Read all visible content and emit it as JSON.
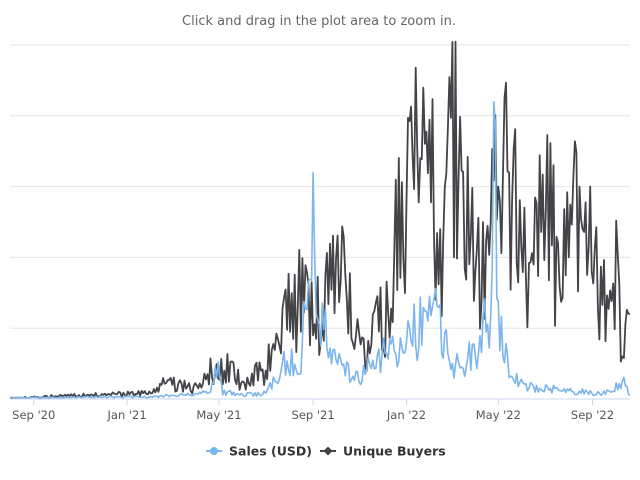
{
  "header": {
    "zoom_hint": "Click and drag in the plot area to zoom in."
  },
  "legend": {
    "sales_label": "Sales (USD)",
    "buyers_label": "Unique Buyers"
  },
  "colors": {
    "sales": "#7cb5ec",
    "buyers": "#434348",
    "grid": "#e6e6e6",
    "axis": "#ccd6eb"
  },
  "chart_data": {
    "type": "line",
    "title": "",
    "xlabel": "",
    "ylabel": "",
    "x_tick_labels": [
      "Sep '20",
      "Jan '21",
      "May '21",
      "Sep '21",
      "Jan '22",
      "May '22",
      "Sep '22"
    ],
    "x_range": [
      "2020-08-01",
      "2022-10-20"
    ],
    "y_range_relative": [
      0,
      5
    ],
    "grid": true,
    "y_axis_labels_shown": false,
    "legend_position": "bottom-center",
    "series": [
      {
        "name": "Sales (USD)",
        "color": "#7cb5ec",
        "points": [
          [
            "2020-08-01",
            0.02
          ],
          [
            "2020-10-01",
            0.02
          ],
          [
            "2020-12-01",
            0.03
          ],
          [
            "2021-02-01",
            0.03
          ],
          [
            "2021-03-01",
            0.05
          ],
          [
            "2021-04-01",
            0.06
          ],
          [
            "2021-04-20",
            0.1
          ],
          [
            "2021-05-01",
            0.7
          ],
          [
            "2021-05-05",
            0.1
          ],
          [
            "2021-06-01",
            0.06
          ],
          [
            "2021-07-01",
            0.08
          ],
          [
            "2021-08-01",
            0.6
          ],
          [
            "2021-08-15",
            0.4
          ],
          [
            "2021-08-25",
            1.8
          ],
          [
            "2021-09-01",
            3.2
          ],
          [
            "2021-09-05",
            1.2
          ],
          [
            "2021-10-01",
            0.55
          ],
          [
            "2021-11-01",
            0.3
          ],
          [
            "2021-12-01",
            0.6
          ],
          [
            "2022-01-01",
            0.8
          ],
          [
            "2022-02-01",
            1.2
          ],
          [
            "2022-02-15",
            1.0
          ],
          [
            "2022-03-01",
            0.5
          ],
          [
            "2022-04-01",
            0.6
          ],
          [
            "2022-04-20",
            1.3
          ],
          [
            "2022-04-25",
            4.2
          ],
          [
            "2022-05-02",
            1.2
          ],
          [
            "2022-05-15",
            0.3
          ],
          [
            "2022-06-15",
            0.15
          ],
          [
            "2022-08-01",
            0.12
          ],
          [
            "2022-09-15",
            0.08
          ],
          [
            "2022-10-10",
            0.25
          ],
          [
            "2022-10-20",
            0.05
          ]
        ]
      },
      {
        "name": "Unique Buyers",
        "color": "#434348",
        "points": [
          [
            "2020-08-01",
            0.01
          ],
          [
            "2020-10-01",
            0.04
          ],
          [
            "2020-12-01",
            0.06
          ],
          [
            "2021-02-01",
            0.08
          ],
          [
            "2021-02-15",
            0.2
          ],
          [
            "2021-03-01",
            0.2
          ],
          [
            "2021-04-01",
            0.15
          ],
          [
            "2021-05-01",
            0.5
          ],
          [
            "2021-06-01",
            0.25
          ],
          [
            "2021-07-01",
            0.4
          ],
          [
            "2021-08-01",
            1.2
          ],
          [
            "2021-08-25",
            1.5
          ],
          [
            "2021-09-01",
            0.9
          ],
          [
            "2021-10-01",
            2.0
          ],
          [
            "2021-11-01",
            0.6
          ],
          [
            "2021-12-01",
            1.1
          ],
          [
            "2022-01-01",
            2.8
          ],
          [
            "2022-02-01",
            3.5
          ],
          [
            "2022-02-15",
            2.2
          ],
          [
            "2022-03-01",
            3.6
          ],
          [
            "2022-04-01",
            1.8
          ],
          [
            "2022-04-20",
            2.5
          ],
          [
            "2022-05-01",
            3.0
          ],
          [
            "2022-05-15",
            3.2
          ],
          [
            "2022-06-01",
            2.0
          ],
          [
            "2022-07-01",
            2.5
          ],
          [
            "2022-08-01",
            2.0
          ],
          [
            "2022-08-15",
            3.0
          ],
          [
            "2022-09-15",
            1.5
          ],
          [
            "2022-10-01",
            2.1
          ],
          [
            "2022-10-10",
            0.6
          ],
          [
            "2022-10-20",
            1.2
          ]
        ]
      }
    ]
  }
}
